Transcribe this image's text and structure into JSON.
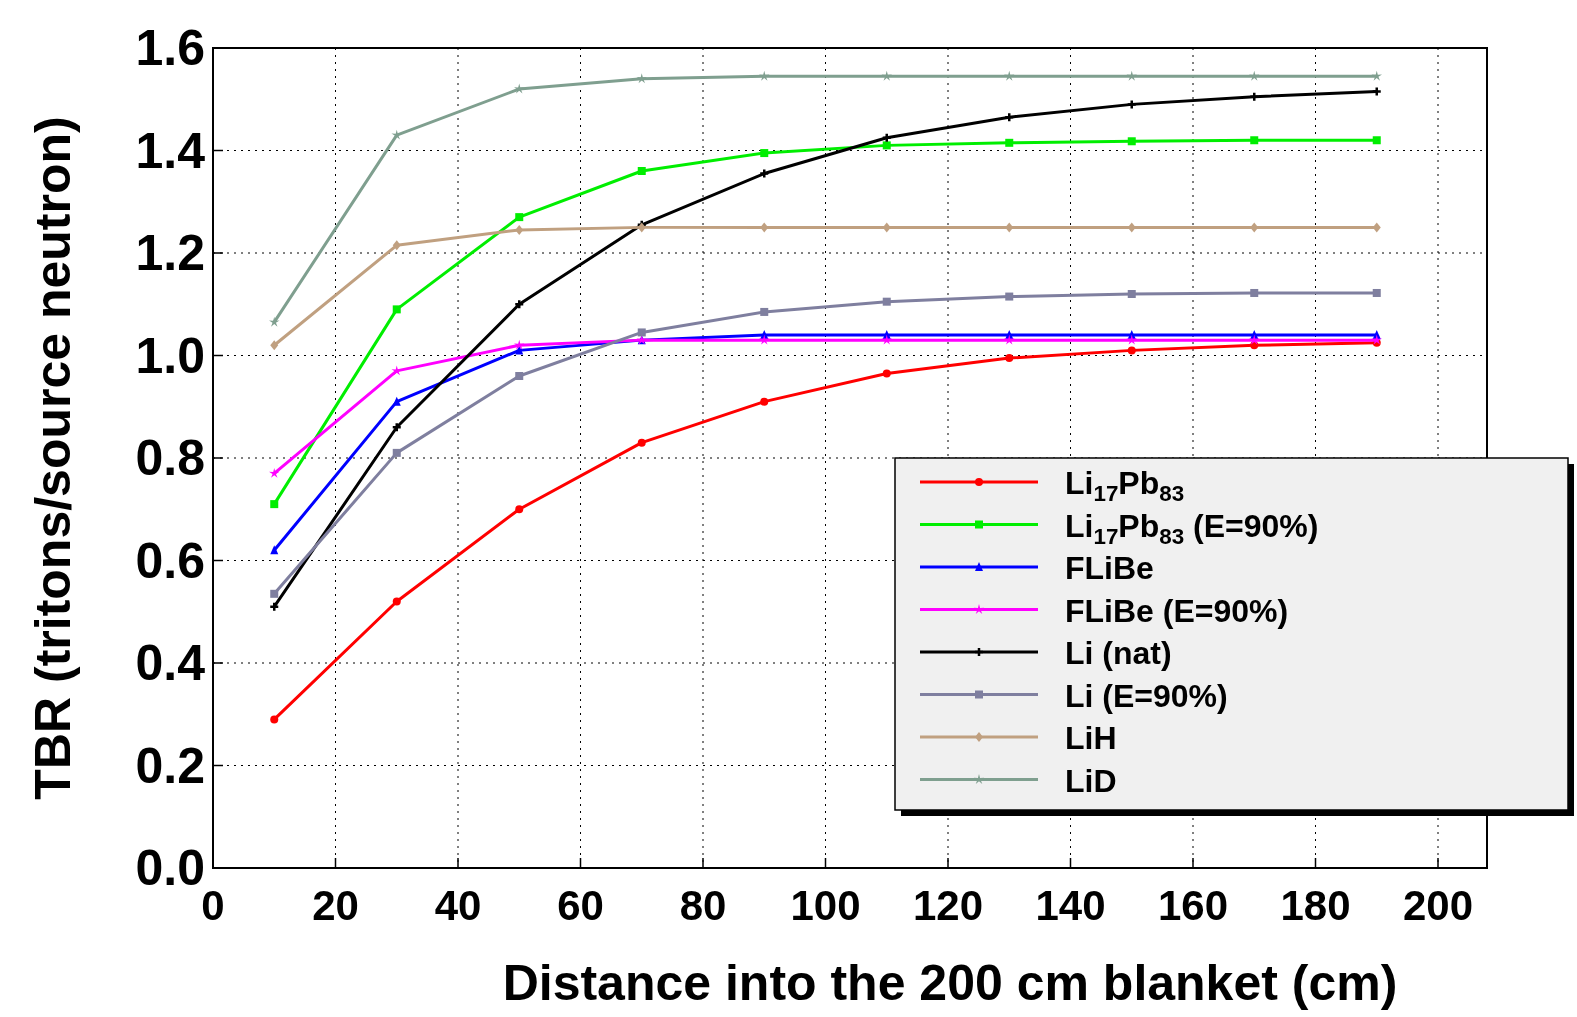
{
  "chart_data": {
    "type": "line",
    "xlabel": "Distance into the 200 cm blanket (cm)",
    "ylabel": "TBR (tritons/source neutron)",
    "x": [
      10,
      30,
      50,
      70,
      90,
      110,
      130,
      150,
      170,
      190
    ],
    "xlim": [
      0,
      208
    ],
    "xticks": [
      0,
      20,
      40,
      60,
      80,
      100,
      120,
      140,
      160,
      180,
      200
    ],
    "ylim": [
      0,
      1.6
    ],
    "yticks": [
      {
        "value": 0,
        "label": "0.0"
      },
      0.2,
      0.4,
      0.6,
      0.8,
      {
        "value": 1,
        "label": "1.0"
      },
      1.2,
      1.4,
      1.6
    ],
    "grid": true,
    "legend": "bottom right",
    "line_style": "solid",
    "series": [
      {
        "name": "Li$_{17}$Pb$_{83}$",
        "color": "#ff0000",
        "marker": "circle",
        "values": [
          0.29,
          0.52,
          0.7,
          0.83,
          0.91,
          0.965,
          0.995,
          1.01,
          1.02,
          1.025
        ]
      },
      {
        "name": "Li$_{17}$Pb$_{83}$ (E=90%)",
        "color": "#00ee00",
        "marker": "square",
        "values": [
          0.71,
          1.09,
          1.27,
          1.36,
          1.395,
          1.41,
          1.415,
          1.418,
          1.42,
          1.42
        ]
      },
      {
        "name": "FLiBe",
        "color": "#0000ff",
        "marker": "triangle",
        "values": [
          0.62,
          0.91,
          1.01,
          1.03,
          1.04,
          1.04,
          1.04,
          1.04,
          1.04,
          1.04
        ]
      },
      {
        "name": "FLiBe (E=90%)",
        "color": "#ff00ff",
        "marker": "star",
        "values": [
          0.77,
          0.97,
          1.02,
          1.03,
          1.03,
          1.03,
          1.03,
          1.03,
          1.03,
          1.03
        ]
      },
      {
        "name": "Li (nat)",
        "color": "#000000",
        "marker": "cross",
        "values": [
          0.51,
          0.86,
          1.1,
          1.255,
          1.355,
          1.425,
          1.465,
          1.49,
          1.505,
          1.515
        ]
      },
      {
        "name": "Li (E=90%)",
        "color": "#7f7f9f",
        "marker": "square",
        "values": [
          0.535,
          0.81,
          0.96,
          1.045,
          1.085,
          1.105,
          1.115,
          1.12,
          1.122,
          1.122
        ]
      },
      {
        "name": "LiH",
        "color": "#c0a080",
        "marker": "diamond",
        "values": [
          1.02,
          1.215,
          1.245,
          1.25,
          1.25,
          1.25,
          1.25,
          1.25,
          1.25,
          1.25
        ]
      },
      {
        "name": "LiD",
        "color": "#7f9f8f",
        "marker": "star",
        "values": [
          1.065,
          1.43,
          1.52,
          1.54,
          1.545,
          1.545,
          1.545,
          1.545,
          1.545,
          1.545
        ]
      }
    ]
  }
}
